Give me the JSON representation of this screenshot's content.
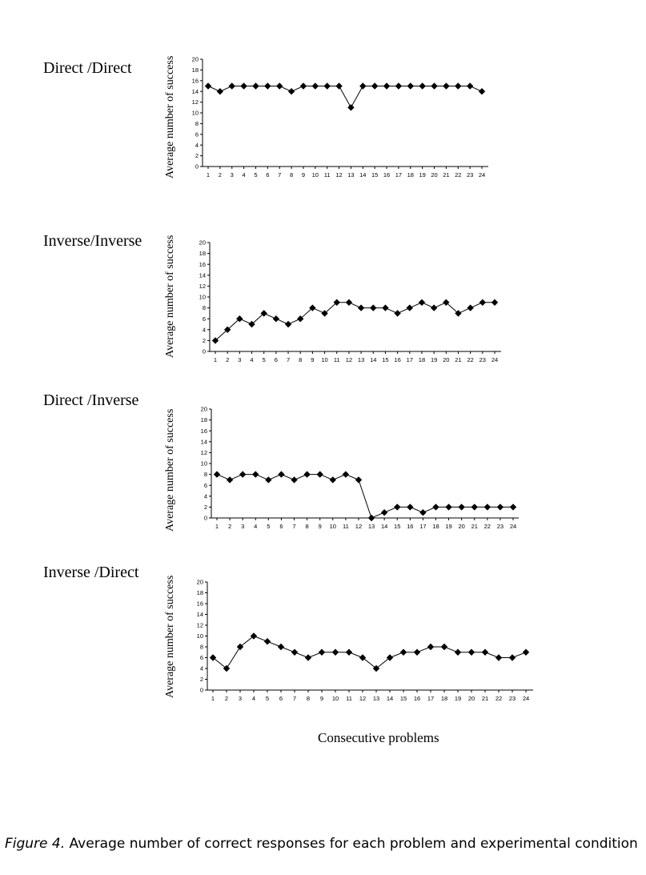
{
  "chart_data": [
    {
      "type": "line",
      "title": "Direct /Direct",
      "ylabel": "Average number of success",
      "ylim": [
        0,
        20
      ],
      "yticks": [
        "0",
        "2",
        "4",
        "6",
        "8",
        "10",
        "12",
        "14",
        "16",
        "18",
        "20"
      ],
      "categories": [
        "1",
        "2",
        "3",
        "4",
        "5",
        "6",
        "7",
        "8",
        "9",
        "10",
        "11",
        "12",
        "13",
        "14",
        "15",
        "16",
        "17",
        "18",
        "19",
        "20",
        "21",
        "22",
        "23",
        "24"
      ],
      "values": [
        15,
        14,
        15,
        15,
        15,
        15,
        15,
        14,
        15,
        15,
        15,
        15,
        11,
        15,
        15,
        15,
        15,
        15,
        15,
        15,
        15,
        15,
        15,
        14
      ],
      "marker": "diamond",
      "grid": false
    },
    {
      "type": "line",
      "title": "Inverse/Inverse",
      "ylabel": "Average number of success",
      "ylim": [
        0,
        20
      ],
      "yticks": [
        "0",
        "2",
        "4",
        "6",
        "8",
        "10",
        "12",
        "14",
        "16",
        "18",
        "20"
      ],
      "categories": [
        "1",
        "2",
        "3",
        "4",
        "5",
        "6",
        "7",
        "8",
        "9",
        "10",
        "11",
        "12",
        "13",
        "14",
        "15",
        "16",
        "17",
        "18",
        "19",
        "20",
        "21",
        "22",
        "23",
        "24"
      ],
      "values": [
        2,
        4,
        6,
        5,
        7,
        6,
        5,
        6,
        8,
        7,
        9,
        9,
        8,
        8,
        8,
        7,
        8,
        9,
        8,
        9,
        7,
        8,
        9,
        9
      ],
      "marker": "diamond",
      "grid": false
    },
    {
      "type": "line",
      "title": "Direct /Inverse",
      "ylabel": "Average number of success",
      "ylim": [
        0,
        20
      ],
      "yticks": [
        "0",
        "2",
        "4",
        "6",
        "8",
        "10",
        "12",
        "14",
        "16",
        "18",
        "20"
      ],
      "categories": [
        "1",
        "2",
        "3",
        "4",
        "5",
        "6",
        "7",
        "8",
        "9",
        "10",
        "11",
        "12",
        "13",
        "14",
        "15",
        "16",
        "17",
        "18",
        "19",
        "20",
        "21",
        "22",
        "23",
        "24"
      ],
      "values": [
        8,
        7,
        8,
        8,
        7,
        8,
        7,
        8,
        8,
        7,
        8,
        7,
        0,
        1,
        2,
        2,
        1,
        2,
        2,
        2,
        2,
        2,
        2,
        2
      ],
      "marker": "diamond",
      "grid": false
    },
    {
      "type": "line",
      "title": "Inverse /Direct",
      "ylabel": "Average number of success",
      "ylim": [
        0,
        20
      ],
      "yticks": [
        "0",
        "2",
        "4",
        "6",
        "8",
        "10",
        "12",
        "14",
        "16",
        "18",
        "20"
      ],
      "categories": [
        "1",
        "2",
        "3",
        "4",
        "5",
        "6",
        "7",
        "8",
        "9",
        "10",
        "11",
        "12",
        "13",
        "14",
        "15",
        "16",
        "17",
        "18",
        "19",
        "20",
        "21",
        "22",
        "23",
        "24"
      ],
      "values": [
        6,
        4,
        8,
        10,
        9,
        8,
        7,
        6,
        7,
        7,
        7,
        6,
        4,
        6,
        7,
        7,
        8,
        8,
        7,
        7,
        7,
        6,
        6,
        7
      ],
      "marker": "diamond",
      "grid": false
    }
  ],
  "xlabel": "Consecutive problems",
  "caption": {
    "figure_label": "Figure 4.",
    "text": " Average number of correct responses for each problem and experimental condition"
  }
}
